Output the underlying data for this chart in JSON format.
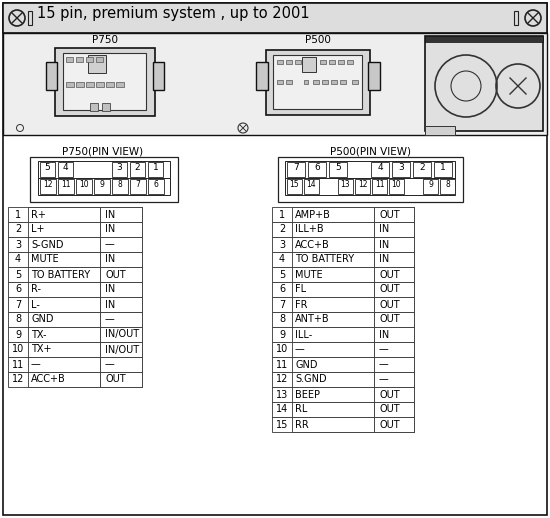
{
  "title": "15 pin, premium system , up to 2001",
  "p750_label": "P750",
  "p500_label": "P500",
  "p750_pin_view": "P750(PIN VIEW)",
  "p500_pin_view": "P500(PIN VIEW)",
  "p750_rows": [
    [
      "1",
      "R+",
      "IN"
    ],
    [
      "2",
      "L+",
      "IN"
    ],
    [
      "3",
      "S-GND",
      "—"
    ],
    [
      "4",
      "MUTE",
      "IN"
    ],
    [
      "5",
      "TO BATTERY",
      "OUT"
    ],
    [
      "6",
      "R-",
      "IN"
    ],
    [
      "7",
      "L-",
      "IN"
    ],
    [
      "8",
      "GND",
      "—"
    ],
    [
      "9",
      "TX-",
      "IN/OUT"
    ],
    [
      "10",
      "TX+",
      "IN/OUT"
    ],
    [
      "11",
      "—",
      "—"
    ],
    [
      "12",
      "ACC+B",
      "OUT"
    ]
  ],
  "p500_rows": [
    [
      "1",
      "AMP+B",
      "OUT"
    ],
    [
      "2",
      "ILL+B",
      "IN"
    ],
    [
      "3",
      "ACC+B",
      "IN"
    ],
    [
      "4",
      "TO BATTERY",
      "IN"
    ],
    [
      "5",
      "MUTE",
      "OUT"
    ],
    [
      "6",
      "FL",
      "OUT"
    ],
    [
      "7",
      "FR",
      "OUT"
    ],
    [
      "8",
      "ANT+B",
      "OUT"
    ],
    [
      "9",
      "ILL-",
      "IN"
    ],
    [
      "10",
      "—",
      "—"
    ],
    [
      "11",
      "GND",
      "—"
    ],
    [
      "12",
      "S.GND",
      "—"
    ],
    [
      "13",
      "BEEP",
      "OUT"
    ],
    [
      "14",
      "RL",
      "OUT"
    ],
    [
      "15",
      "RR",
      "OUT"
    ]
  ],
  "p750_top": [
    "5",
    "4",
    "",
    "",
    "3",
    "2",
    "1"
  ],
  "p750_bot": [
    "12",
    "11",
    "10",
    "9",
    "8",
    "7",
    "6"
  ],
  "p500_top": [
    "7",
    "6",
    "5",
    "",
    "4",
    "3",
    "2",
    "1"
  ],
  "p500_bot": [
    "15",
    "14",
    "",
    "13",
    "12",
    "11",
    "10",
    "",
    "9",
    "8"
  ]
}
